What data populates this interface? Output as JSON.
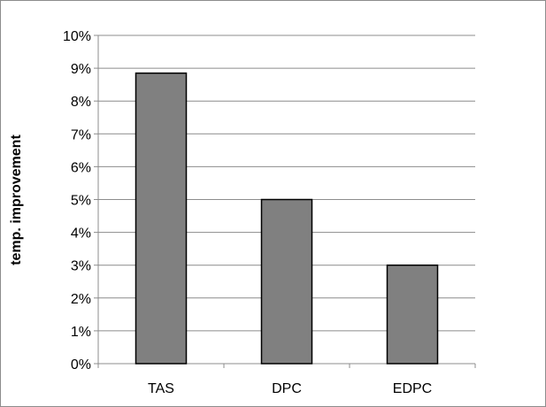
{
  "chart_data": {
    "type": "bar",
    "title": "",
    "xlabel": "",
    "ylabel": "temp. improvement",
    "categories": [
      "TAS",
      "DPC",
      "EDPC"
    ],
    "values": [
      8.85,
      5.0,
      3.0
    ],
    "ylim": [
      0,
      10
    ],
    "yticks": [
      0,
      1,
      2,
      3,
      4,
      5,
      6,
      7,
      8,
      9,
      10
    ],
    "ytick_labels": [
      "0%",
      "1%",
      "2%",
      "3%",
      "4%",
      "5%",
      "6%",
      "7%",
      "8%",
      "9%",
      "10%"
    ],
    "grid": true,
    "legend": false,
    "colors": {
      "bar_fill": "#808080",
      "bar_stroke": "#000000",
      "grid": "#8c8c8c",
      "axis": "#8c8c8c"
    }
  }
}
